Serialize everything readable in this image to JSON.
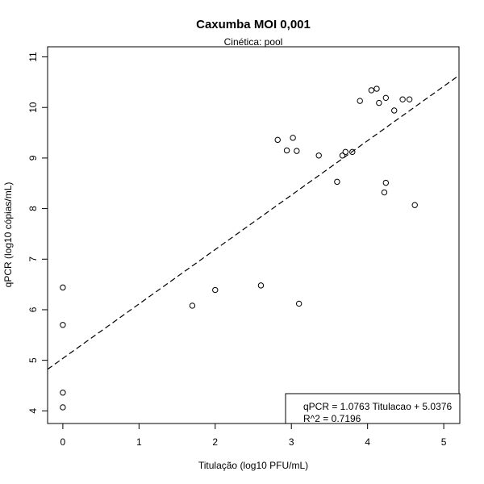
{
  "chart_data": {
    "type": "scatter",
    "title": "Caxumba MOI 0,001",
    "subtitle": "Cinética: pool",
    "xlabel": "Titulação (log10 PFU/mL)",
    "ylabel": "qPCR (log10 cópias/mL)",
    "xlim": [
      -0.2,
      5.2
    ],
    "ylim": [
      3.75,
      11.2
    ],
    "xticks": [
      "0",
      "1",
      "2",
      "3",
      "4",
      "5"
    ],
    "yticks": [
      "4",
      "5",
      "6",
      "7",
      "8",
      "9",
      "10",
      "11"
    ],
    "grid": false,
    "points": [
      {
        "x": 0.0,
        "y": 6.44
      },
      {
        "x": 0.0,
        "y": 5.7
      },
      {
        "x": 0.0,
        "y": 4.36
      },
      {
        "x": 0.0,
        "y": 4.07
      },
      {
        "x": 1.7,
        "y": 6.08
      },
      {
        "x": 2.0,
        "y": 6.39
      },
      {
        "x": 2.6,
        "y": 6.48
      },
      {
        "x": 2.82,
        "y": 9.36
      },
      {
        "x": 2.94,
        "y": 9.15
      },
      {
        "x": 3.02,
        "y": 9.4
      },
      {
        "x": 3.07,
        "y": 9.14
      },
      {
        "x": 3.1,
        "y": 6.12
      },
      {
        "x": 3.36,
        "y": 9.05
      },
      {
        "x": 3.6,
        "y": 8.53
      },
      {
        "x": 3.67,
        "y": 9.05
      },
      {
        "x": 3.71,
        "y": 9.12
      },
      {
        "x": 3.8,
        "y": 9.12
      },
      {
        "x": 3.9,
        "y": 10.13
      },
      {
        "x": 4.05,
        "y": 10.34
      },
      {
        "x": 4.12,
        "y": 10.37
      },
      {
        "x": 4.15,
        "y": 10.09
      },
      {
        "x": 4.22,
        "y": 8.32
      },
      {
        "x": 4.24,
        "y": 8.51
      },
      {
        "x": 4.24,
        "y": 10.19
      },
      {
        "x": 4.35,
        "y": 9.94
      },
      {
        "x": 4.46,
        "y": 10.16
      },
      {
        "x": 4.55,
        "y": 10.16
      },
      {
        "x": 4.62,
        "y": 8.07
      }
    ],
    "fit_line": {
      "slope": 1.0763,
      "intercept": 5.0376,
      "style": "dashed"
    },
    "legend": {
      "position": "bottom-right",
      "lines": [
        "qPCR = 1.0763 Titulacao + 5.0376",
        "R^2 = 0.7196"
      ]
    }
  }
}
